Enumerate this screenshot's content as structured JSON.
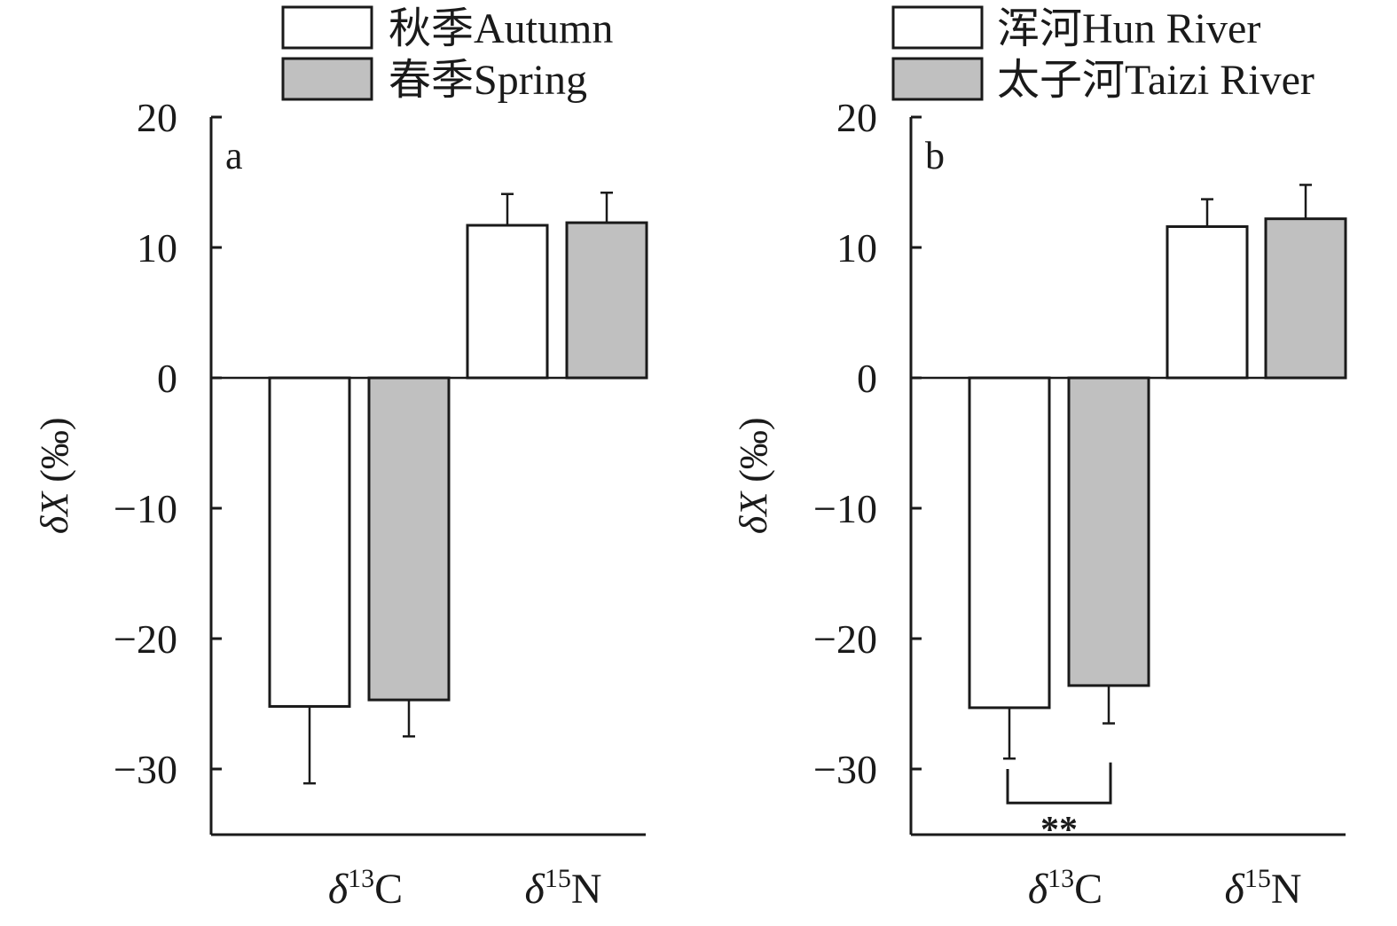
{
  "chart_data": [
    {
      "type": "bar",
      "panel_label": "a",
      "ylabel": "δX (‰)",
      "ylim": [
        -35,
        20
      ],
      "yticks": [
        20,
        10,
        0,
        -10,
        -20,
        -30
      ],
      "ytick_labels": [
        "20",
        "10",
        "0",
        "−10",
        "−20",
        "−30"
      ],
      "categories": [
        {
          "prefix": "δ",
          "sup": "13",
          "element": "C"
        },
        {
          "prefix": "δ",
          "sup": "15",
          "element": "N"
        }
      ],
      "series": [
        {
          "name": "秋季Autumn",
          "color": "#ffffff",
          "values": [
            -25.2,
            11.7
          ],
          "errors": [
            5.9,
            2.4
          ]
        },
        {
          "name": "春季Spring",
          "color": "#c0c0c0",
          "values": [
            -24.7,
            11.9
          ],
          "errors": [
            2.8,
            2.3
          ]
        }
      ],
      "legend_position": "top-right",
      "grid": false
    },
    {
      "type": "bar",
      "panel_label": "b",
      "ylabel": "δX (‰)",
      "ylim": [
        -35,
        20
      ],
      "yticks": [
        20,
        10,
        0,
        -10,
        -20,
        -30
      ],
      "ytick_labels": [
        "20",
        "10",
        "0",
        "−10",
        "−20",
        "−30"
      ],
      "categories": [
        {
          "prefix": "δ",
          "sup": "13",
          "element": "C"
        },
        {
          "prefix": "δ",
          "sup": "15",
          "element": "N"
        }
      ],
      "series": [
        {
          "name": "浑河Hun River",
          "color": "#ffffff",
          "values": [
            -25.3,
            11.6
          ],
          "errors": [
            3.9,
            2.1
          ]
        },
        {
          "name": "太子河Taizi River",
          "color": "#c0c0c0",
          "values": [
            -23.6,
            12.2
          ],
          "errors": [
            2.9,
            2.6
          ]
        }
      ],
      "significance": {
        "label": "**",
        "category_index": 0
      },
      "legend_position": "top-right",
      "grid": false
    }
  ]
}
